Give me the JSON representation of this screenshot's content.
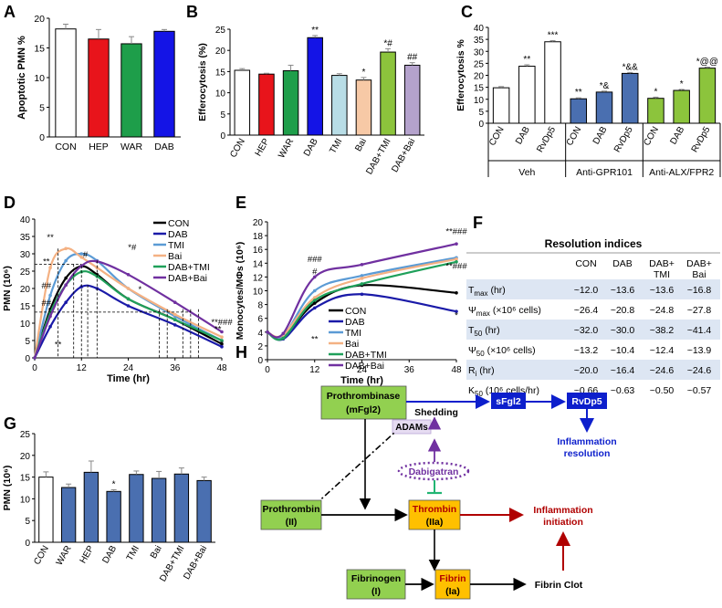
{
  "panels": {
    "A": "A",
    "B": "B",
    "C": "C",
    "D": "D",
    "E": "E",
    "F": "F",
    "G": "G",
    "H": "H"
  },
  "chart_data": [
    {
      "id": "A",
      "type": "bar",
      "ylabel": "Apoptotic PMN %",
      "ylim": [
        0,
        20
      ],
      "yticks": [
        "0",
        "5",
        "10",
        "15",
        "20"
      ],
      "categories": [
        "CON",
        "HEP",
        "WAR",
        "DAB"
      ],
      "values": [
        18.2,
        16.5,
        15.7,
        17.8
      ],
      "errors": [
        0.8,
        1.6,
        1.2,
        0.3
      ],
      "colors": [
        "#ffffff",
        "#e8141b",
        "#1e9e4a",
        "#1414e6"
      ],
      "sig": [
        "",
        "",
        "",
        ""
      ]
    },
    {
      "id": "B",
      "type": "bar",
      "ylabel": "Efferocytosis (%)",
      "ylim": [
        0,
        25
      ],
      "yticks": [
        "0",
        "5",
        "10",
        "15",
        "20",
        "25"
      ],
      "categories": [
        "CON",
        "HEP",
        "WAR",
        "DAB",
        "TMI",
        "Bai",
        "DAB+TMI",
        "DAB+Bai"
      ],
      "values": [
        15.3,
        14.4,
        15.2,
        23.0,
        14.1,
        13.0,
        19.6,
        16.5
      ],
      "errors": [
        0.4,
        0.2,
        1.3,
        0.5,
        0.4,
        0.6,
        0.8,
        0.6
      ],
      "colors": [
        "#ffffff",
        "#e8141b",
        "#1e9e4a",
        "#1414e6",
        "#b8dde6",
        "#f7c9a6",
        "#8cc43c",
        "#b4a2cc"
      ],
      "sig": [
        "",
        "",
        "",
        "**",
        "",
        "*",
        "*#",
        "##"
      ]
    },
    {
      "id": "C",
      "type": "bar",
      "ylabel": "Efferocytosis %",
      "ylim": [
        0,
        40
      ],
      "yticks": [
        "0",
        "5",
        "10",
        "15",
        "20",
        "25",
        "30",
        "35",
        "40"
      ],
      "categories": [
        "CON",
        "DAB",
        "RvDp5",
        "CON",
        "DAB",
        "RvDp5",
        "CON",
        "DAB",
        "RvDp5"
      ],
      "groups": [
        "Veh",
        "Anti-GPR101",
        "Anti-ALX/FPR2"
      ],
      "values": [
        14.8,
        23.8,
        34.0,
        10.2,
        13.0,
        20.8,
        10.4,
        13.7,
        23.0
      ],
      "errors": [
        0.5,
        0.6,
        0.5,
        0.4,
        0.4,
        0.4,
        0.5,
        0.4,
        0.4
      ],
      "colors": [
        "#ffffff",
        "#ffffff",
        "#ffffff",
        "#4a6fb0",
        "#4a6fb0",
        "#4a6fb0",
        "#8cc43c",
        "#8cc43c",
        "#8cc43c"
      ],
      "sig": [
        "",
        "**",
        "***",
        "**",
        "*&",
        "*&&",
        "*",
        "*",
        "*@@"
      ]
    },
    {
      "id": "D",
      "type": "line",
      "xlabel": "Time (hr)",
      "ylabel": "PMN (10⁶)",
      "xlim": [
        0,
        48
      ],
      "ylim": [
        0,
        40
      ],
      "xticks": [
        "0",
        "12",
        "24",
        "36",
        "48"
      ],
      "yticks": [
        "0",
        "5",
        "10",
        "15",
        "20",
        "25",
        "30",
        "35",
        "40"
      ],
      "x": [
        0,
        4,
        8,
        12,
        16,
        24,
        36,
        48
      ],
      "series": [
        {
          "name": "CON",
          "color": "#000000",
          "values": [
            0,
            14,
            23,
            26.4,
            24,
            17,
            11,
            4
          ]
        },
        {
          "name": "DAB",
          "color": "#1a1aa8",
          "values": [
            0,
            9,
            16,
            20.5,
            20,
            15,
            9.5,
            3.2
          ]
        },
        {
          "name": "TMI",
          "color": "#5b9bd5",
          "values": [
            0,
            18,
            28,
            30,
            28,
            20,
            12,
            5
          ]
        },
        {
          "name": "Bai",
          "color": "#f4b183",
          "values": [
            0,
            26,
            31.5,
            29,
            26,
            20,
            12.5,
            6
          ]
        },
        {
          "name": "DAB+TMI",
          "color": "#1fa05a",
          "values": [
            0,
            13,
            21,
            24.8,
            23.5,
            17,
            11,
            5
          ]
        },
        {
          "name": "DAB+Bai",
          "color": "#7030a0",
          "values": [
            0,
            12,
            21,
            26.5,
            27.8,
            24,
            16,
            7.5
          ]
        }
      ],
      "annotations": [
        "**",
        "**",
        "##",
        "##",
        "**",
        "#",
        "*",
        "*#",
        "**",
        "**###",
        "*"
      ]
    },
    {
      "id": "E",
      "type": "line",
      "xlabel": "Time (hr)",
      "ylabel": "Monocytes/MΦs (10⁶)",
      "xlim": [
        0,
        48
      ],
      "ylim": [
        0,
        20
      ],
      "xticks": [
        "0",
        "12",
        "24",
        "36",
        "48"
      ],
      "yticks": [
        "0",
        "2",
        "4",
        "6",
        "8",
        "10",
        "12",
        "14",
        "16",
        "18",
        "20"
      ],
      "x": [
        0,
        4,
        12,
        24,
        48
      ],
      "series": [
        {
          "name": "CON",
          "color": "#000000",
          "values": [
            4,
            3.2,
            8.2,
            10.8,
            9.7
          ]
        },
        {
          "name": "DAB",
          "color": "#1a1aa8",
          "values": [
            4,
            3.0,
            7.5,
            9.5,
            7.0
          ]
        },
        {
          "name": "TMI",
          "color": "#5b9bd5",
          "values": [
            4,
            3.4,
            10.0,
            12.2,
            14.8
          ]
        },
        {
          "name": "Bai",
          "color": "#f4b183",
          "values": [
            4,
            3.6,
            9.0,
            11.8,
            14.6
          ]
        },
        {
          "name": "DAB+TMI",
          "color": "#1fa05a",
          "values": [
            4,
            3.1,
            8.6,
            11.0,
            14.2
          ]
        },
        {
          "name": "DAB+Bai",
          "color": "#7030a0",
          "values": [
            4,
            3.8,
            12.0,
            13.8,
            16.8
          ]
        }
      ],
      "annotations": [
        "###",
        "#",
        "*",
        "**",
        "**###",
        "**###",
        "*"
      ]
    },
    {
      "id": "G",
      "type": "bar",
      "ylabel": "PMN (10⁶)",
      "ylim": [
        0,
        25
      ],
      "yticks": [
        "0",
        "5",
        "10",
        "15",
        "20",
        "25"
      ],
      "categories": [
        "CON",
        "WAR",
        "HEP",
        "DAB",
        "TMI",
        "Bai",
        "DAB+TMI",
        "DAB+Bai"
      ],
      "values": [
        15.0,
        12.6,
        16.1,
        11.7,
        15.6,
        14.7,
        15.7,
        14.2
      ],
      "errors": [
        1.2,
        0.8,
        2.6,
        0.4,
        0.8,
        1.6,
        1.4,
        0.8
      ],
      "colors": [
        "#ffffff",
        "#4a6fb0",
        "#4a6fb0",
        "#4a6fb0",
        "#4a6fb0",
        "#4a6fb0",
        "#4a6fb0",
        "#4a6fb0"
      ],
      "sig": [
        "",
        "",
        "",
        "*",
        "",
        "",
        "",
        ""
      ]
    }
  ],
  "table": {
    "title": "Resolution indices",
    "columns": [
      "",
      "CON",
      "DAB",
      "DAB+\nTMI",
      "DAB+\nBai"
    ],
    "rows": [
      {
        "label": "T_max (hr)",
        "values": [
          "~12.0",
          "~13.6",
          "~13.6",
          "~16.8"
        ]
      },
      {
        "label": "Ψ_max (×10⁶ cells)",
        "values": [
          "~26.4",
          "~20.8",
          "~24.8",
          "~27.8"
        ]
      },
      {
        "label": "T_50 (hr)",
        "values": [
          "~32.0",
          "~30.0",
          "~38.2",
          "~41.4"
        ]
      },
      {
        "label": "Ψ_50 (×10⁶ cells)",
        "values": [
          "~13.2",
          "~10.4",
          "~12.4",
          "~13.9"
        ]
      },
      {
        "label": "R_i (hr)",
        "values": [
          "~20.0",
          "~16.4",
          "~24.6",
          "~24.6"
        ]
      },
      {
        "label": "K_50 (10⁶ cells/hr)",
        "values": [
          "~0.66",
          "~0.63",
          "~0.50",
          "~0.57"
        ]
      }
    ]
  },
  "diagram": {
    "prothrombinase": [
      "Prothrombinase",
      "(mFgl2)"
    ],
    "shedding": "Shedding",
    "sfgl2": "sFgl2",
    "rvdp5": "RvDp5",
    "adams": "ADAMs",
    "dabigatran": "Dabigatran",
    "inflam_resolution": [
      "Inflammation",
      "resolution"
    ],
    "prothrombin": [
      "Prothrombin",
      "(II)"
    ],
    "thrombin": [
      "Thrombin",
      "(IIa)"
    ],
    "inflam_initiation": [
      "Inflammation",
      "initiation"
    ],
    "fibrinogen": [
      "Fibrinogen",
      "(I)"
    ],
    "fibrin": [
      "Fibrin",
      "(Ia)"
    ],
    "fibrin_clot": "Fibrin Clot",
    "colors": {
      "green_box": "#92d050",
      "orange_box": "#ffc000",
      "blue_box": "#0d1fcc",
      "red": "#b00000",
      "purple": "#7030a0"
    }
  }
}
